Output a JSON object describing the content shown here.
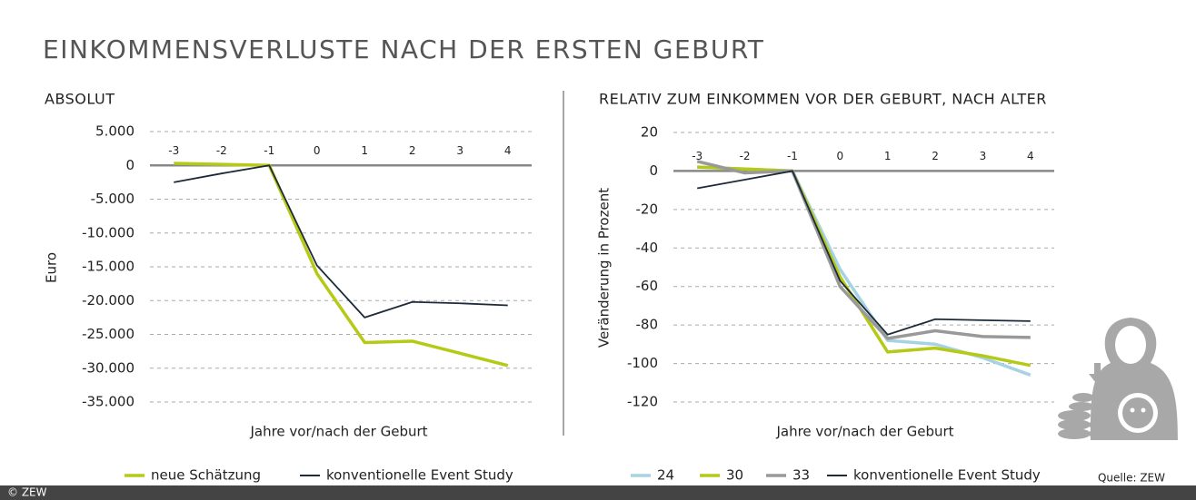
{
  "title": "EINKOMMENSVERLUSTE NACH DER ERSTEN GEBURT",
  "source": "Quelle: ZEW",
  "copyright": "© ZEW",
  "chart_data": [
    {
      "type": "line",
      "title": "ABSOLUT",
      "y_label": "Euro",
      "x_label": "Jahre vor/nach der Geburt",
      "x": [
        -3,
        -2,
        -1,
        0,
        1,
        2,
        3,
        4
      ],
      "xlim": [
        -3.5,
        4.5
      ],
      "xticks": [
        -3,
        -2,
        -1,
        0,
        1,
        2,
        3,
        4
      ],
      "ylim": [
        -35000,
        5000
      ],
      "yticks": [
        {
          "value": -35000,
          "label": "-35.000"
        },
        {
          "value": -30000,
          "label": "-30.000"
        },
        {
          "value": -25000,
          "label": "-25.000"
        },
        {
          "value": -20000,
          "label": "-20.000"
        },
        {
          "value": -15000,
          "label": "-15.000"
        },
        {
          "value": -10000,
          "label": "-10.000"
        },
        {
          "value": -5000,
          "label": "-5.000"
        },
        0,
        {
          "value": 5000,
          "label": "5.000"
        }
      ],
      "grid": true,
      "series": [
        {
          "name": "neue Schätzung",
          "color": "#b5c916",
          "values": [
            300,
            150,
            0,
            -16000,
            -26200,
            -26000,
            -27800,
            -29600
          ]
        },
        {
          "name": "konventionelle Event Study",
          "color": "#1c2b3a",
          "values": [
            -2500,
            -1200,
            0,
            -14800,
            -22500,
            -20200,
            -20400,
            -20700
          ]
        }
      ]
    },
    {
      "type": "line",
      "title": "RELATIV ZUM EINKOMMEN VOR DER GEBURT, NACH ALTER",
      "y_label": "Veränderung in Prozent",
      "x_label": "Jahre vor/nach der Geburt",
      "x": [
        -3,
        -2,
        -1,
        0,
        1,
        2,
        3,
        4
      ],
      "xlim": [
        -3.5,
        4.5
      ],
      "xticks": [
        -3,
        -2,
        -1,
        0,
        1,
        2,
        3,
        4
      ],
      "ylim": [
        -120,
        20
      ],
      "yticks": [
        -120,
        -100,
        -80,
        -60,
        -40,
        -20,
        0,
        20
      ],
      "grid": true,
      "series": [
        {
          "name": "24",
          "color": "#a6d3e3",
          "values": [
            2,
            1,
            0,
            -51,
            -88,
            -90,
            -97,
            -106
          ]
        },
        {
          "name": "30",
          "color": "#b5c916",
          "values": [
            2,
            1,
            0,
            -55,
            -94,
            -92,
            -96,
            -101
          ]
        },
        {
          "name": "33",
          "color": "#999999",
          "values": [
            5,
            -1,
            0,
            -60,
            -87,
            -83,
            -86,
            -86.5
          ]
        },
        {
          "name": "konventionelle Event Study",
          "color": "#1c2b3a",
          "values": [
            -9,
            -4.5,
            0,
            -57,
            -85,
            -77,
            -77.5,
            -78
          ]
        }
      ]
    }
  ]
}
